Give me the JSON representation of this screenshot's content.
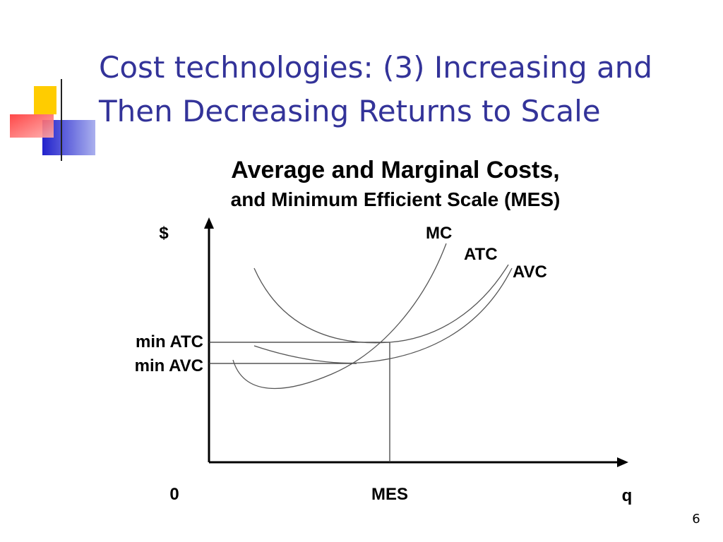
{
  "slide": {
    "title_lines": [
      "Cost technologies: (3) Increasing and",
      "Then Decreasing Returns to Scale"
    ],
    "page_number": "6"
  },
  "figure": {
    "title": "Average and Marginal Costs,",
    "subtitle": "and Minimum Efficient Scale (MES)",
    "y_axis_label": "$",
    "x_axis_labels": [
      "0",
      "MES",
      "q"
    ],
    "curve_labels": [
      "MC",
      "ATC",
      "AVC"
    ],
    "level_labels": [
      "min ATC",
      "min AVC"
    ]
  }
}
